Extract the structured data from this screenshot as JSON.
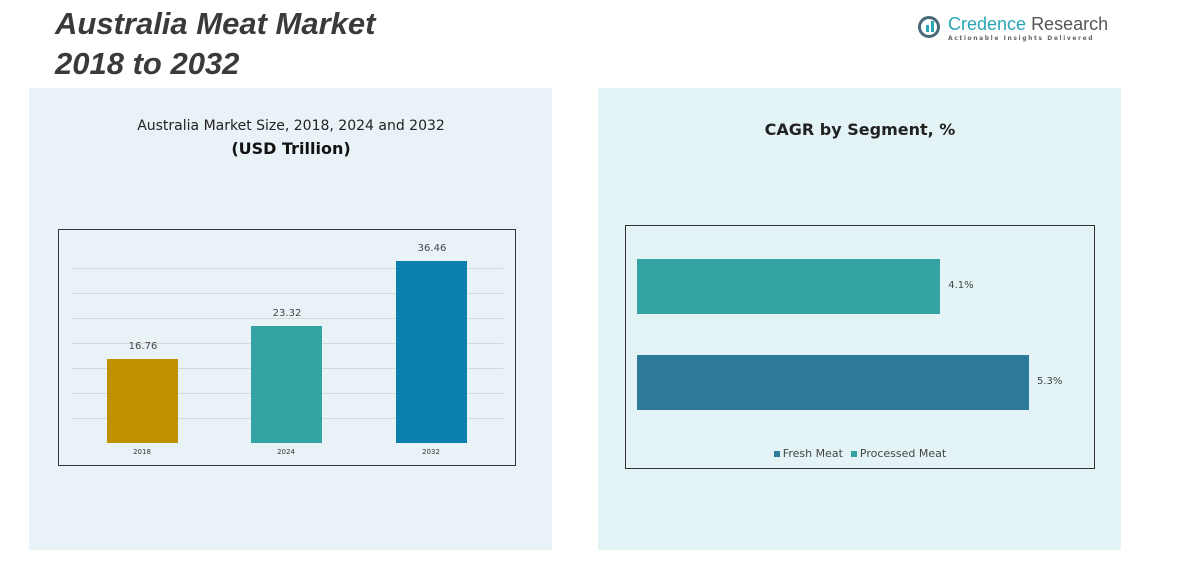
{
  "header": {
    "title_line1": "Australia Meat Market",
    "title_line2": "2018 to 2032"
  },
  "logo": {
    "name_part1": "Credence",
    "name_part2": "Research",
    "tagline": "Actionable Insights Delivered"
  },
  "chart_data": [
    {
      "type": "bar",
      "title": "Australia Market Size, 2018, 2024 and 2032",
      "subtitle": "(USD Trillion)",
      "categories": [
        "2018",
        "2024",
        "2032"
      ],
      "values": [
        16.76,
        23.32,
        36.46
      ],
      "value_labels": [
        "16.76",
        "23.32",
        "36.46"
      ],
      "colors": [
        "#bf9000",
        "#33a3a3",
        "#0a80ae"
      ],
      "ylim": [
        0,
        40
      ],
      "grid": true
    },
    {
      "type": "bar",
      "orientation": "horizontal",
      "title": "CAGR by Segment, %",
      "categories": [
        "Processed Meat",
        "Fresh Meat"
      ],
      "values": [
        4.1,
        5.3
      ],
      "value_labels": [
        "4.1%",
        "5.3%"
      ],
      "colors": [
        "#33a3a3",
        "#2e7a9a"
      ],
      "xlim": [
        0,
        5.3
      ],
      "legend": [
        "Fresh Meat",
        "Processed Meat"
      ],
      "legend_position": "bottom"
    }
  ]
}
